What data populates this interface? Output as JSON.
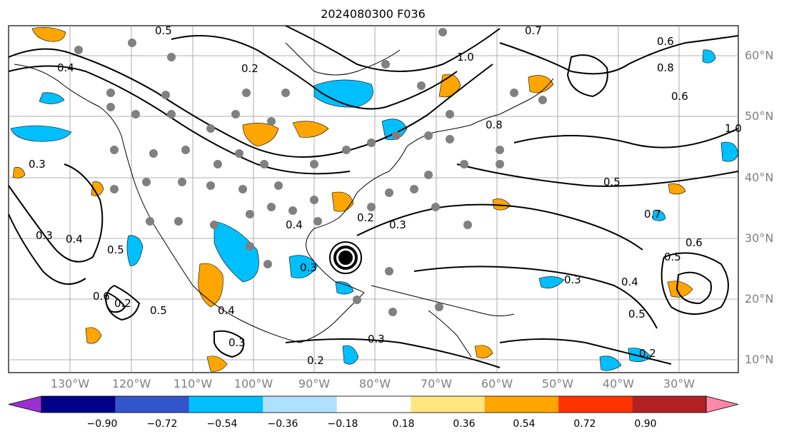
{
  "title": "2024080300 F036",
  "lat_labels": [
    "60°N",
    "50°N",
    "40°N",
    "30°N",
    "20°N",
    "10°N"
  ],
  "lon_labels": [
    "130°W",
    "120°W",
    "110°W",
    "100°W",
    "90°W",
    "80°W",
    "70°W",
    "60°W",
    "50°W",
    "40°W",
    "30°W"
  ],
  "colorbar": {
    "ticks": [
      "−0.90",
      "−0.72",
      "−0.54",
      "−0.36",
      "−0.18",
      "0.18",
      "0.36",
      "0.54",
      "0.72",
      "0.90"
    ],
    "colors": [
      "#9b30d0",
      "#00008b",
      "#3355cc",
      "#00bfff",
      "#b0e0ff",
      "#ffffff",
      "#ffe680",
      "#ffa500",
      "#ff3300",
      "#b22222",
      "#ff88aa"
    ]
  },
  "contour_labels": [
    "0.5",
    "0.7",
    "0.6",
    "0.8",
    "1.0",
    "0.2",
    "0.3",
    "0.4",
    "0.8",
    "1.0",
    "0.6",
    "0.5",
    "0.7",
    "0.4",
    "0.3",
    "0.2",
    "0.3",
    "0.4",
    "0.5",
    "0.6",
    "0.3",
    "0.4",
    "0.5",
    "0.3",
    "0.2",
    "0.3",
    "0.4",
    "0.5",
    "0.6",
    "0.5",
    "0.2",
    "0.3",
    "0.2"
  ],
  "legend_colors": {
    "land_stations": "#808080",
    "cyclone_center": "#000000"
  }
}
